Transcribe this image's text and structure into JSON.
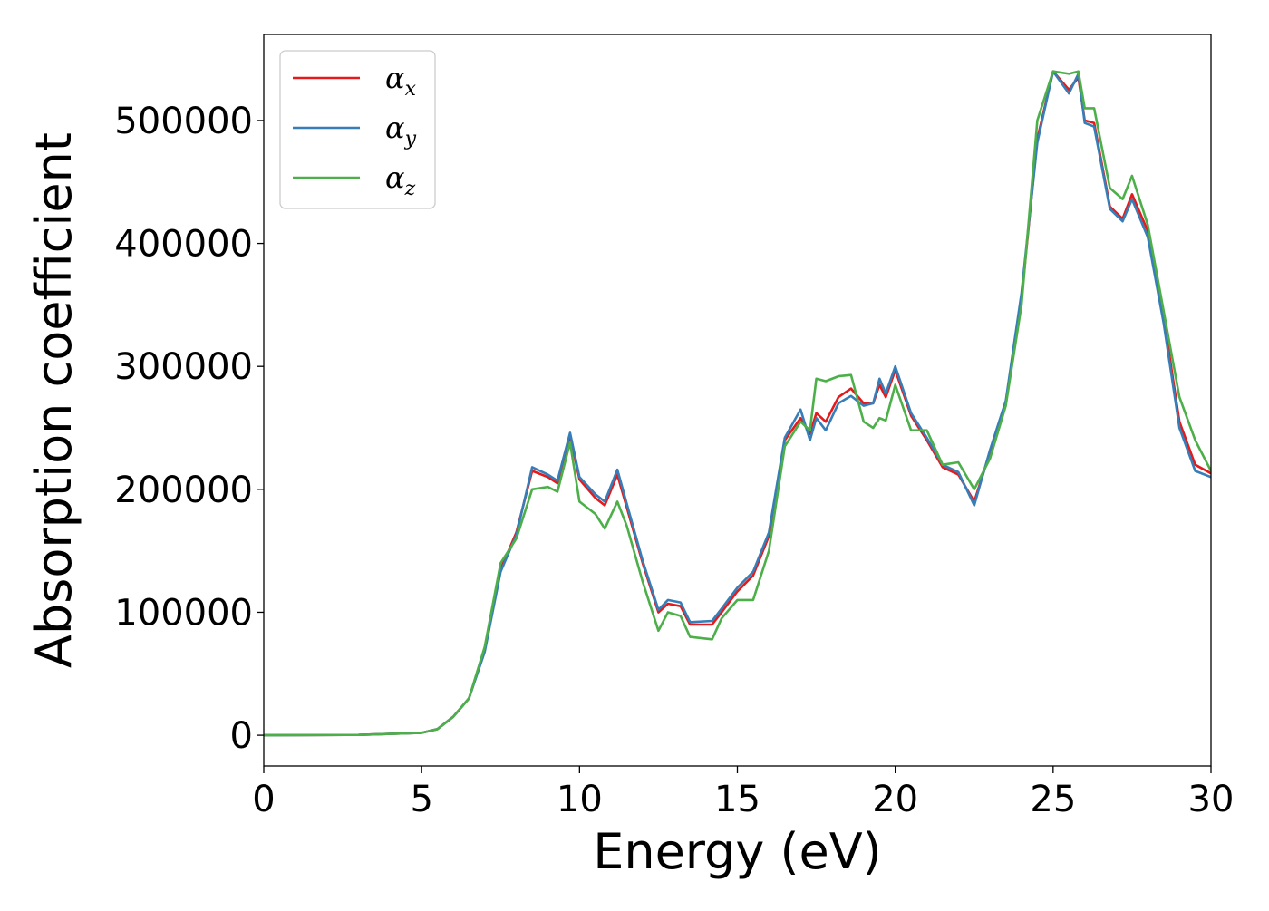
{
  "chart_data": {
    "type": "line",
    "title": "",
    "xlabel": "Energy (eV)",
    "ylabel": "Absorption coefficient",
    "xlim": [
      0,
      30
    ],
    "ylim": [
      -25000,
      570000
    ],
    "xticks": [
      0,
      5,
      10,
      15,
      20,
      25,
      30
    ],
    "yticks": [
      0,
      100000,
      200000,
      300000,
      400000,
      500000
    ],
    "grid": false,
    "legend_position": "top-left",
    "series": [
      {
        "name": "α",
        "subscript": "x",
        "color": "#e41a1c",
        "x": [
          0,
          3,
          5,
          5.5,
          6,
          6.5,
          7,
          7.5,
          8,
          8.5,
          9,
          9.3,
          9.7,
          10,
          10.5,
          10.8,
          11.2,
          11.5,
          12,
          12.5,
          12.8,
          13.2,
          13.5,
          14.2,
          14.5,
          15,
          15.5,
          16,
          16.5,
          17,
          17.3,
          17.5,
          17.8,
          18.2,
          18.6,
          19,
          19.3,
          19.5,
          19.7,
          20,
          20.5,
          21,
          21.5,
          22,
          22.5,
          23,
          23.5,
          24,
          24.5,
          25,
          25.5,
          25.8,
          26,
          26.3,
          26.8,
          27.2,
          27.5,
          28,
          28.5,
          29,
          29.5,
          30
        ],
        "y": [
          0,
          300,
          2000,
          5000,
          15000,
          30000,
          70000,
          135000,
          165000,
          215000,
          210000,
          205000,
          244000,
          208000,
          193000,
          187000,
          212000,
          185000,
          140000,
          100000,
          107000,
          105000,
          90000,
          90000,
          100000,
          117000,
          130000,
          162000,
          240000,
          258000,
          245000,
          262000,
          255000,
          275000,
          282000,
          270000,
          270000,
          285000,
          275000,
          297000,
          260000,
          240000,
          218000,
          212000,
          190000,
          230000,
          270000,
          355000,
          485000,
          540000,
          525000,
          535000,
          500000,
          498000,
          430000,
          420000,
          440000,
          410000,
          340000,
          255000,
          220000,
          213000
        ]
      },
      {
        "name": "α",
        "subscript": "y",
        "color": "#377eb8",
        "x": [
          0,
          3,
          5,
          5.5,
          6,
          6.5,
          7,
          7.5,
          8,
          8.5,
          9,
          9.3,
          9.7,
          10,
          10.5,
          10.8,
          11.2,
          11.5,
          12,
          12.5,
          12.8,
          13.2,
          13.5,
          14.2,
          14.5,
          15,
          15.5,
          16,
          16.5,
          17,
          17.3,
          17.5,
          17.8,
          18.2,
          18.6,
          19,
          19.3,
          19.5,
          19.7,
          20,
          20.5,
          21,
          21.5,
          22,
          22.5,
          23,
          23.5,
          24,
          24.5,
          25,
          25.5,
          25.8,
          26,
          26.3,
          26.8,
          27.2,
          27.5,
          28,
          28.5,
          29,
          29.5,
          30
        ],
        "y": [
          0,
          300,
          2000,
          5000,
          15000,
          30000,
          68000,
          133000,
          163000,
          218000,
          212000,
          207000,
          246000,
          210000,
          196000,
          190000,
          216000,
          188000,
          142000,
          102000,
          110000,
          108000,
          92000,
          93000,
          103000,
          120000,
          133000,
          165000,
          242000,
          265000,
          240000,
          258000,
          248000,
          270000,
          276000,
          268000,
          270000,
          290000,
          278000,
          300000,
          262000,
          242000,
          220000,
          214000,
          187000,
          232000,
          272000,
          360000,
          482000,
          540000,
          522000,
          538000,
          498000,
          495000,
          428000,
          418000,
          436000,
          405000,
          335000,
          250000,
          215000,
          210000
        ]
      },
      {
        "name": "α",
        "subscript": "z",
        "color": "#4daf4a",
        "x": [
          0,
          3,
          5,
          5.5,
          6,
          6.5,
          7,
          7.5,
          8,
          8.5,
          9,
          9.3,
          9.7,
          10,
          10.5,
          10.8,
          11.2,
          11.5,
          12,
          12.5,
          12.8,
          13.2,
          13.5,
          14.2,
          14.5,
          15,
          15.5,
          16,
          16.5,
          17,
          17.3,
          17.5,
          17.8,
          18.2,
          18.6,
          19,
          19.3,
          19.5,
          19.7,
          20,
          20.5,
          21,
          21.5,
          22,
          22.5,
          23,
          23.5,
          24,
          24.5,
          25,
          25.5,
          25.8,
          26,
          26.3,
          26.8,
          27.2,
          27.5,
          28,
          28.5,
          29,
          29.5,
          30
        ],
        "y": [
          0,
          300,
          2000,
          5000,
          15000,
          30000,
          72000,
          140000,
          160000,
          200000,
          202000,
          198000,
          238000,
          190000,
          180000,
          168000,
          190000,
          170000,
          125000,
          85000,
          100000,
          97000,
          80000,
          78000,
          95000,
          110000,
          110000,
          150000,
          235000,
          255000,
          248000,
          290000,
          288000,
          292000,
          293000,
          255000,
          250000,
          258000,
          256000,
          285000,
          248000,
          248000,
          220000,
          222000,
          200000,
          225000,
          268000,
          350000,
          500000,
          540000,
          538000,
          540000,
          510000,
          510000,
          445000,
          436000,
          455000,
          415000,
          345000,
          275000,
          240000,
          215000
        ]
      }
    ]
  }
}
